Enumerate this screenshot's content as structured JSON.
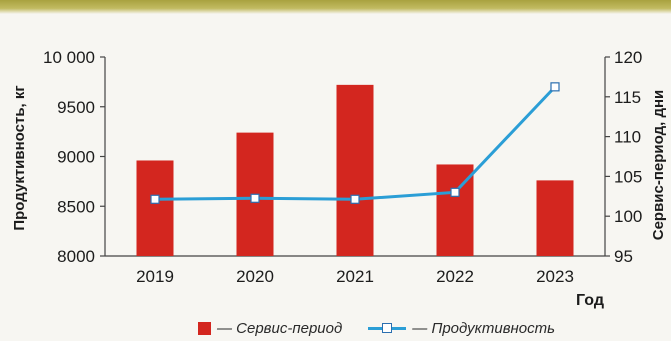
{
  "chart_data": {
    "type": "bar+line",
    "categories": [
      "2019",
      "2020",
      "2021",
      "2022",
      "2023"
    ],
    "series": [
      {
        "name": "Сервис-период",
        "type": "bar",
        "axis": "right",
        "values": [
          107,
          110.5,
          116.5,
          106.5,
          104.5
        ]
      },
      {
        "name": "Продуктивность",
        "type": "line",
        "axis": "left",
        "values": [
          8570,
          8580,
          8570,
          8640,
          9700
        ]
      }
    ],
    "y_left": {
      "label": "Продуктивность, кг",
      "range": [
        8000,
        10000
      ],
      "ticks": [
        8000,
        8500,
        9000,
        9500,
        10000
      ],
      "tick_labels": [
        "8000",
        "8500",
        "9000",
        "9500",
        "10 000"
      ]
    },
    "y_right": {
      "label": "Сервис-период, дни",
      "range": [
        95,
        120
      ],
      "ticks": [
        95,
        100,
        105,
        110,
        115,
        120
      ],
      "tick_labels": [
        "95",
        "100",
        "105",
        "110",
        "115",
        "120"
      ]
    },
    "xlabel": "Год",
    "grid": false,
    "legend_position": "bottom",
    "colors": {
      "bar": "#d3261f",
      "line": "#2b9ed6",
      "marker_border": "#2b6fb0",
      "axis": "#444444"
    }
  },
  "legend": {
    "bar_text": "— Сервис-период",
    "line_text": "— Продуктивность"
  }
}
